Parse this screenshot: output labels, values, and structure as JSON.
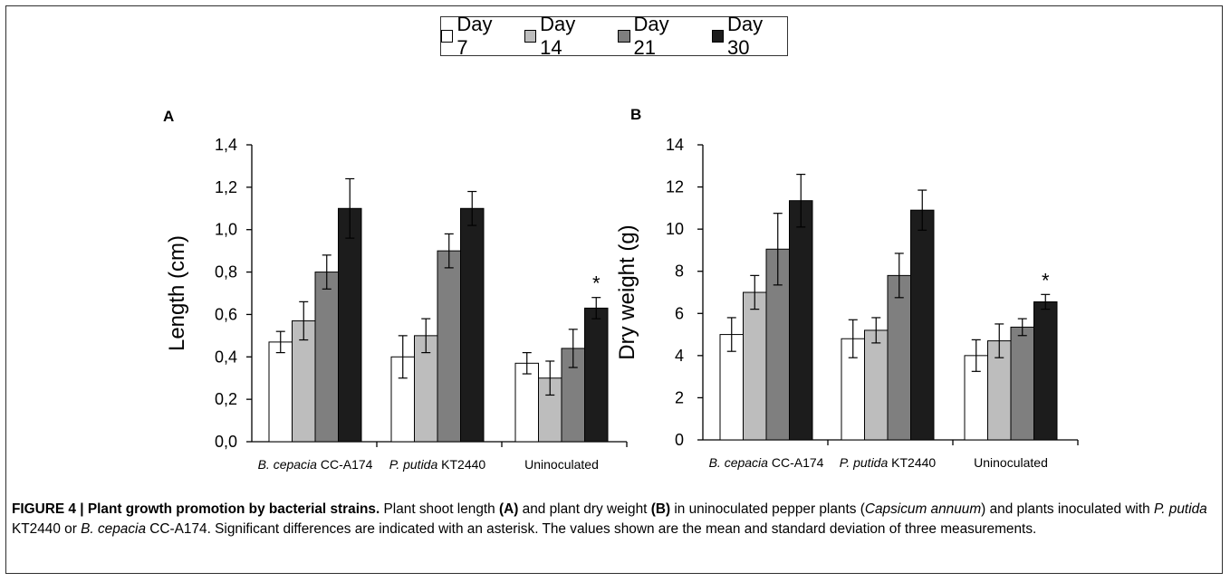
{
  "legend": {
    "entries": [
      {
        "label": "Day 7",
        "color": "#ffffff"
      },
      {
        "label": "Day 14",
        "color": "#bdbdbd"
      },
      {
        "label": "Day 21",
        "color": "#7f7f7f"
      },
      {
        "label": "Day 30",
        "color": "#1c1c1c"
      }
    ]
  },
  "chart_data": [
    {
      "panel": "A",
      "type": "bar",
      "ylabel": "Length (cm)",
      "ylim": [
        0,
        1.4
      ],
      "yticks": [
        "0,0",
        "0,2",
        "0,4",
        "0,6",
        "0,8",
        "1,0",
        "1,2",
        "1,4"
      ],
      "categories": [
        {
          "italic": "B. cepacia",
          "plain": " CC-A174"
        },
        {
          "italic": "P. putida",
          "plain": " KT2440"
        },
        {
          "italic": "",
          "plain": "Uninoculated"
        }
      ],
      "series": [
        {
          "name": "Day 7",
          "values": [
            0.47,
            0.4,
            0.37
          ],
          "errors": [
            0.05,
            0.1,
            0.05
          ]
        },
        {
          "name": "Day 14",
          "values": [
            0.57,
            0.5,
            0.3
          ],
          "errors": [
            0.09,
            0.08,
            0.08
          ]
        },
        {
          "name": "Day 21",
          "values": [
            0.8,
            0.9,
            0.44
          ],
          "errors": [
            0.08,
            0.08,
            0.09
          ]
        },
        {
          "name": "Day 30",
          "values": [
            1.1,
            1.1,
            0.63
          ],
          "errors": [
            0.14,
            0.08,
            0.05
          ]
        }
      ],
      "annotations": [
        {
          "category": 2,
          "series": 3,
          "text": "*"
        }
      ]
    },
    {
      "panel": "B",
      "type": "bar",
      "ylabel": "Dry weight (g)",
      "ylim": [
        0,
        14
      ],
      "yticks": [
        "0",
        "2",
        "4",
        "6",
        "8",
        "10",
        "12",
        "14"
      ],
      "categories": [
        {
          "italic": "B. cepacia",
          "plain": " CC-A174"
        },
        {
          "italic": "P. putida",
          "plain": " KT2440"
        },
        {
          "italic": "",
          "plain": "Uninoculated"
        }
      ],
      "series": [
        {
          "name": "Day 7",
          "values": [
            5.0,
            4.8,
            4.0
          ],
          "errors": [
            0.8,
            0.9,
            0.75
          ]
        },
        {
          "name": "Day 14",
          "values": [
            7.0,
            5.2,
            4.7
          ],
          "errors": [
            0.8,
            0.6,
            0.8
          ]
        },
        {
          "name": "Day 21",
          "values": [
            9.05,
            7.8,
            5.35
          ],
          "errors": [
            1.7,
            1.05,
            0.4
          ]
        },
        {
          "name": "Day 30",
          "values": [
            11.35,
            10.9,
            6.55
          ],
          "errors": [
            1.25,
            0.95,
            0.35
          ]
        }
      ],
      "annotations": [
        {
          "category": 2,
          "series": 3,
          "text": "*"
        }
      ]
    }
  ],
  "caption": {
    "figure_label": "FIGURE 4 | Plant growth promotion by bacterial strains.",
    "t1": " Plant shoot length ",
    "a": "(A)",
    "t2": " and plant dry weight ",
    "b": "(B)",
    "t3": " in uninoculated pepper plants (",
    "species": "Capsicum annuum",
    "t4": ") and plants inoculated with ",
    "strain1": "P. putida",
    "t5": " KT2440 or ",
    "strain2": "B. cepacia",
    "t6": " CC-A174. Significant differences are indicated with an asterisk. The values shown are the mean and standard deviation of three measurements."
  }
}
